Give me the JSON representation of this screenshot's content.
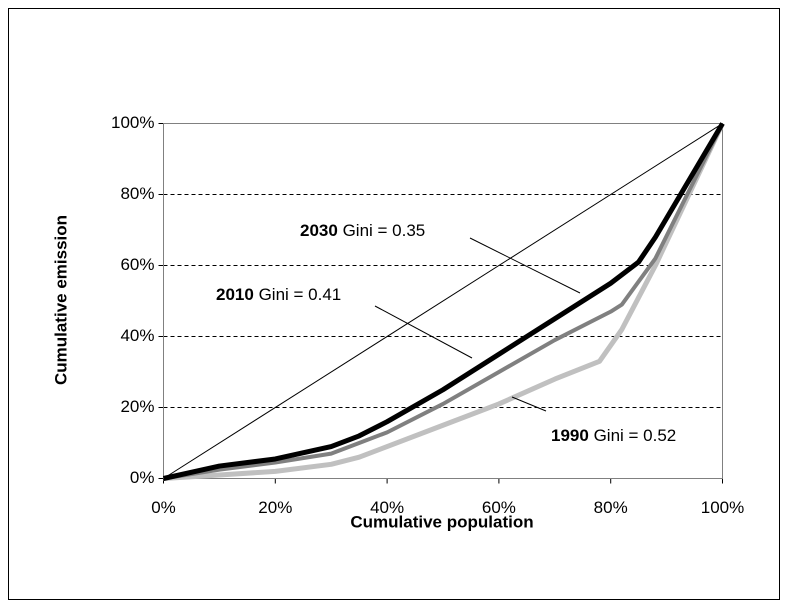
{
  "chart_data": {
    "type": "line",
    "x_label": "Cumulative population",
    "y_label": "Cumulative emission",
    "xlim": [
      0,
      100
    ],
    "ylim": [
      0,
      100
    ],
    "xticks": [
      {
        "value": 0,
        "label": "0%"
      },
      {
        "value": 20,
        "label": "20%"
      },
      {
        "value": 40,
        "label": "40%"
      },
      {
        "value": 60,
        "label": "60%"
      },
      {
        "value": 80,
        "label": "80%"
      },
      {
        "value": 100,
        "label": "100%"
      }
    ],
    "yticks": [
      {
        "value": 0,
        "label": "0%"
      },
      {
        "value": 20,
        "label": "20%"
      },
      {
        "value": 40,
        "label": "40%"
      },
      {
        "value": 60,
        "label": "60%"
      },
      {
        "value": 80,
        "label": "80%"
      },
      {
        "value": 100,
        "label": "100%"
      }
    ],
    "grid": true,
    "series": [
      {
        "color": "#000000",
        "width": 1,
        "x": [
          0,
          100
        ],
        "values": [
          0,
          100
        ]
      },
      {
        "name": "1990",
        "annotation": "Gini = 0.52",
        "color": "#c0c0c0",
        "width": 5,
        "x": [
          0,
          10,
          20,
          30,
          35,
          40,
          50,
          60,
          70,
          78,
          82,
          88,
          100
        ],
        "values": [
          0,
          1,
          2,
          4,
          6,
          9,
          15,
          21,
          28,
          33,
          42,
          60,
          100
        ]
      },
      {
        "name": "2010",
        "annotation": "Gini = 0.41",
        "color": "#808080",
        "width": 4,
        "x": [
          0,
          10,
          20,
          30,
          35,
          40,
          50,
          60,
          70,
          80,
          82,
          88,
          100
        ],
        "values": [
          0,
          2.5,
          4.5,
          7,
          10,
          13,
          21,
          30,
          39,
          47,
          49,
          62,
          100
        ]
      },
      {
        "name": "2030",
        "annotation": "Gini = 0.35",
        "color": "#000000",
        "width": 5,
        "x": [
          0,
          10,
          20,
          30,
          35,
          40,
          50,
          60,
          70,
          80,
          85,
          88,
          100
        ],
        "values": [
          0,
          3.5,
          5.5,
          9,
          12,
          16,
          25,
          35,
          45,
          55,
          61,
          68,
          100
        ]
      }
    ]
  }
}
